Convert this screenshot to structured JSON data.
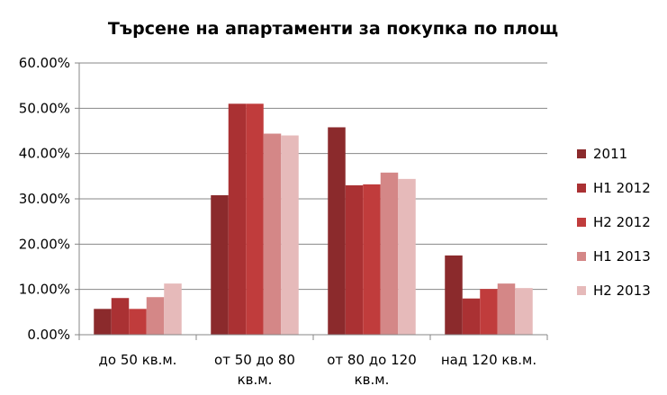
{
  "chart_data": {
    "type": "bar",
    "title": "Търсене на апартаменти за покупка по площ",
    "categories": [
      [
        "до 50 кв.м."
      ],
      [
        "от 50 до 80",
        "кв.м."
      ],
      [
        "от 80 до 120",
        "кв.м."
      ],
      [
        "над 120 кв.м."
      ]
    ],
    "series": [
      {
        "name": "2011",
        "color": "#8B2A2C",
        "values": [
          5.7,
          30.8,
          45.8,
          17.5
        ]
      },
      {
        "name": "H1 2012",
        "color": "#AA3133",
        "values": [
          8.1,
          51.0,
          33.0,
          8.0
        ]
      },
      {
        "name": "H2 2012",
        "color": "#C03C3C",
        "values": [
          5.7,
          51.0,
          33.2,
          10.1
        ]
      },
      {
        "name": "H1 2013",
        "color": "#D48787",
        "values": [
          8.3,
          44.4,
          35.8,
          11.3
        ]
      },
      {
        "name": "H2 2013",
        "color": "#E6BABA",
        "values": [
          11.3,
          44.0,
          34.4,
          10.3
        ]
      }
    ],
    "ylim": [
      0,
      60
    ],
    "yticks": [
      "0.00%",
      "10.00%",
      "20.00%",
      "30.00%",
      "40.00%",
      "50.00%",
      "60.00%"
    ],
    "grid": true,
    "legend_position": "right"
  }
}
